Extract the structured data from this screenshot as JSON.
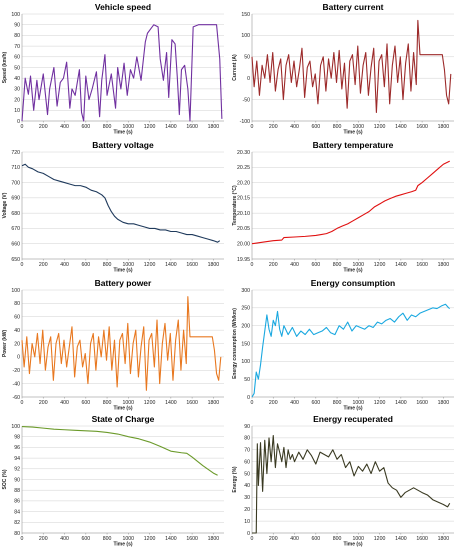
{
  "chart_data": [
    {
      "id": "speed",
      "type": "line",
      "title": "Vehicle speed",
      "xlabel": "Time (s)",
      "ylabel": "Speed (km/h)",
      "xlim": [
        0,
        1900
      ],
      "ylim": [
        0,
        100
      ],
      "xticks": [
        0,
        200,
        400,
        600,
        800,
        1000,
        1200,
        1400,
        1600,
        1800
      ],
      "yticks": [
        0,
        10,
        20,
        30,
        40,
        50,
        60,
        70,
        80,
        90,
        100
      ],
      "ytick_labels": [
        "0",
        "10",
        "20",
        "30",
        "40",
        "50",
        "60",
        "70",
        "80",
        "90",
        "100"
      ],
      "color": "#7030a0",
      "x": [
        0,
        30,
        60,
        80,
        110,
        140,
        160,
        200,
        240,
        260,
        300,
        330,
        360,
        390,
        420,
        450,
        470,
        500,
        540,
        560,
        580,
        600,
        630,
        660,
        700,
        730,
        750,
        780,
        800,
        840,
        880,
        900,
        930,
        960,
        990,
        1020,
        1050,
        1080,
        1120,
        1160,
        1180,
        1210,
        1240,
        1280,
        1300,
        1330,
        1360,
        1380,
        1410,
        1440,
        1460,
        1480,
        1500,
        1530,
        1560,
        1580,
        1610,
        1660,
        1700,
        1750,
        1800,
        1830,
        1860,
        1880
      ],
      "y": [
        0,
        40,
        25,
        42,
        10,
        38,
        20,
        44,
        6,
        30,
        50,
        14,
        36,
        40,
        55,
        12,
        30,
        24,
        48,
        8,
        0,
        42,
        20,
        30,
        46,
        4,
        38,
        62,
        24,
        44,
        12,
        50,
        30,
        54,
        24,
        48,
        40,
        60,
        38,
        74,
        82,
        86,
        90,
        88,
        58,
        38,
        64,
        22,
        76,
        72,
        42,
        6,
        48,
        52,
        30,
        0,
        88,
        90,
        90,
        90,
        90,
        90,
        58,
        2
      ]
    },
    {
      "id": "current",
      "type": "line",
      "title": "Battery current",
      "xlabel": "Time (s)",
      "ylabel": "Current (A)",
      "xlim": [
        0,
        1900
      ],
      "ylim": [
        -100,
        150
      ],
      "xticks": [
        0,
        200,
        400,
        600,
        800,
        1000,
        1200,
        1400,
        1600,
        1800
      ],
      "yticks": [
        -100,
        -50,
        0,
        50,
        100,
        150
      ],
      "ytick_labels": [
        "-100",
        "-50",
        "0",
        "50",
        "100",
        "150"
      ],
      "color": "#9c2a2a",
      "x": [
        0,
        20,
        45,
        70,
        95,
        120,
        145,
        170,
        195,
        220,
        245,
        270,
        295,
        320,
        345,
        370,
        395,
        420,
        445,
        470,
        495,
        520,
        545,
        570,
        595,
        620,
        645,
        670,
        695,
        720,
        745,
        770,
        795,
        820,
        845,
        870,
        895,
        920,
        945,
        970,
        995,
        1020,
        1045,
        1070,
        1095,
        1120,
        1145,
        1170,
        1195,
        1220,
        1245,
        1270,
        1295,
        1320,
        1345,
        1370,
        1395,
        1420,
        1445,
        1470,
        1495,
        1520,
        1545,
        1560,
        1580,
        1620,
        1680,
        1740,
        1790,
        1810,
        1830,
        1850,
        1870
      ],
      "y": [
        50,
        -20,
        40,
        -40,
        30,
        0,
        55,
        -10,
        60,
        -30,
        20,
        45,
        -50,
        30,
        55,
        -10,
        40,
        -20,
        20,
        70,
        -45,
        25,
        40,
        -20,
        10,
        -60,
        30,
        50,
        -30,
        45,
        0,
        60,
        -10,
        65,
        -25,
        35,
        -70,
        40,
        55,
        -15,
        75,
        -35,
        30,
        60,
        -40,
        25,
        70,
        -80,
        40,
        55,
        -20,
        80,
        -60,
        30,
        75,
        -10,
        50,
        -50,
        35,
        80,
        -30,
        60,
        -15,
        135,
        55,
        55,
        55,
        55,
        55,
        20,
        -40,
        -60,
        10
      ]
    },
    {
      "id": "voltage",
      "type": "line",
      "title": "Battery voltage",
      "xlabel": "Time (s)",
      "ylabel": "Voltage (V)",
      "xlim": [
        0,
        1900
      ],
      "ylim": [
        650,
        720
      ],
      "xticks": [
        0,
        200,
        400,
        600,
        800,
        1000,
        1200,
        1400,
        1600,
        1800
      ],
      "yticks": [
        650,
        660,
        670,
        680,
        690,
        700,
        710,
        720
      ],
      "ytick_labels": [
        "650",
        "660",
        "670",
        "680",
        "690",
        "700",
        "710",
        "720"
      ],
      "color": "#1f3a5c",
      "x": [
        0,
        30,
        60,
        100,
        150,
        200,
        250,
        300,
        350,
        400,
        450,
        500,
        550,
        600,
        650,
        700,
        750,
        780,
        810,
        840,
        870,
        900,
        950,
        1000,
        1050,
        1100,
        1150,
        1200,
        1250,
        1300,
        1350,
        1400,
        1450,
        1500,
        1550,
        1600,
        1650,
        1700,
        1750,
        1800,
        1840,
        1860
      ],
      "y": [
        711,
        712,
        710,
        709,
        707,
        706,
        704,
        702,
        701,
        700,
        699,
        698,
        698,
        697,
        695,
        694,
        692,
        690,
        685,
        681,
        678,
        676,
        674,
        673,
        673,
        672,
        671,
        670,
        670,
        669,
        669,
        668,
        668,
        667,
        666,
        666,
        665,
        664,
        663,
        662,
        661,
        662
      ]
    },
    {
      "id": "temperature",
      "type": "line",
      "title": "Battery temperature",
      "xlabel": "Time (s)",
      "ylabel": "Temperature (°C)",
      "xlim": [
        0,
        1900
      ],
      "ylim": [
        19.95,
        20.3
      ],
      "xticks": [
        0,
        200,
        400,
        600,
        800,
        1000,
        1200,
        1400,
        1600,
        1800
      ],
      "yticks": [
        19.95,
        20.0,
        20.05,
        20.1,
        20.15,
        20.2,
        20.25,
        20.3
      ],
      "ytick_labels": [
        "19.95",
        "20.00",
        "20.05",
        "20.10",
        "20.15",
        "20.20",
        "20.25",
        "20.30"
      ],
      "color": "#e01010",
      "x": [
        0,
        100,
        200,
        280,
        300,
        400,
        500,
        600,
        650,
        700,
        750,
        800,
        850,
        900,
        950,
        1000,
        1050,
        1100,
        1150,
        1200,
        1250,
        1300,
        1350,
        1400,
        1450,
        1500,
        1540,
        1560,
        1600,
        1650,
        1700,
        1750,
        1800,
        1860
      ],
      "y": [
        20.0,
        20.005,
        20.01,
        20.012,
        20.02,
        20.022,
        20.024,
        20.027,
        20.03,
        20.033,
        20.04,
        20.05,
        20.058,
        20.065,
        20.075,
        20.085,
        20.095,
        20.105,
        20.12,
        20.13,
        20.14,
        20.148,
        20.155,
        20.16,
        20.165,
        20.17,
        20.175,
        20.19,
        20.2,
        20.215,
        20.23,
        20.245,
        20.26,
        20.27
      ]
    },
    {
      "id": "power",
      "type": "line",
      "title": "Battery power",
      "xlabel": "Time (s)",
      "ylabel": "Power (kW)",
      "xlim": [
        0,
        1900
      ],
      "ylim": [
        -60,
        100
      ],
      "xticks": [
        0,
        200,
        400,
        600,
        800,
        1000,
        1200,
        1400,
        1600,
        1800
      ],
      "yticks": [
        -60,
        -40,
        -20,
        0,
        20,
        40,
        60,
        80,
        100
      ],
      "ytick_labels": [
        "-60",
        "-40",
        "-20",
        "0",
        "20",
        "40",
        "60",
        "80",
        "100"
      ],
      "color": "#e87820",
      "x": [
        0,
        20,
        45,
        70,
        95,
        120,
        145,
        170,
        195,
        220,
        245,
        270,
        295,
        320,
        345,
        370,
        395,
        420,
        445,
        470,
        495,
        520,
        545,
        570,
        595,
        620,
        645,
        670,
        695,
        720,
        745,
        770,
        795,
        820,
        845,
        870,
        895,
        920,
        945,
        970,
        995,
        1020,
        1045,
        1070,
        1095,
        1120,
        1145,
        1170,
        1195,
        1220,
        1245,
        1270,
        1295,
        1320,
        1345,
        1370,
        1395,
        1420,
        1445,
        1470,
        1495,
        1520,
        1545,
        1560,
        1580,
        1620,
        1680,
        1740,
        1790,
        1810,
        1830,
        1850,
        1870
      ],
      "y": [
        25,
        -15,
        30,
        -25,
        20,
        0,
        35,
        -10,
        40,
        -20,
        15,
        30,
        -35,
        20,
        35,
        -10,
        25,
        -15,
        15,
        45,
        -30,
        15,
        25,
        -15,
        5,
        -40,
        20,
        35,
        -20,
        30,
        0,
        40,
        -5,
        45,
        -20,
        25,
        -45,
        25,
        35,
        -10,
        50,
        -25,
        20,
        40,
        -30,
        15,
        45,
        -50,
        25,
        35,
        -15,
        55,
        -40,
        20,
        50,
        -5,
        35,
        -35,
        25,
        55,
        -20,
        40,
        -10,
        90,
        30,
        30,
        30,
        30,
        30,
        10,
        -25,
        -35,
        0
      ]
    },
    {
      "id": "consumption",
      "type": "line",
      "title": "Energy consumption",
      "xlabel": "Time (s)",
      "ylabel": "Energy consumption (Wh/km)",
      "xlim": [
        0,
        1900
      ],
      "ylim": [
        0,
        300
      ],
      "xticks": [
        0,
        200,
        400,
        600,
        800,
        1000,
        1200,
        1400,
        1600,
        1800
      ],
      "yticks": [
        0,
        50,
        100,
        150,
        200,
        250,
        300
      ],
      "ytick_labels": [
        "0",
        "50",
        "100",
        "150",
        "200",
        "250",
        "300"
      ],
      "color": "#1aa8e0",
      "x": [
        0,
        20,
        40,
        60,
        80,
        100,
        120,
        140,
        160,
        180,
        200,
        220,
        240,
        260,
        280,
        300,
        340,
        380,
        420,
        460,
        500,
        540,
        580,
        620,
        660,
        700,
        740,
        780,
        820,
        860,
        900,
        940,
        980,
        1020,
        1060,
        1100,
        1140,
        1180,
        1220,
        1260,
        1300,
        1340,
        1380,
        1420,
        1460,
        1500,
        1540,
        1580,
        1620,
        1660,
        1700,
        1740,
        1780,
        1820,
        1850,
        1860
      ],
      "y": [
        0,
        10,
        70,
        50,
        90,
        140,
        185,
        230,
        190,
        170,
        215,
        200,
        240,
        190,
        170,
        200,
        175,
        195,
        170,
        185,
        175,
        190,
        175,
        180,
        185,
        195,
        180,
        175,
        200,
        190,
        210,
        185,
        200,
        195,
        190,
        200,
        195,
        210,
        205,
        215,
        220,
        210,
        225,
        235,
        215,
        230,
        225,
        235,
        240,
        245,
        250,
        248,
        255,
        260,
        250,
        248
      ]
    },
    {
      "id": "soc",
      "type": "line",
      "title": "State of Charge",
      "xlabel": "Time (s)",
      "ylabel": "SOC (%)",
      "xlim": [
        0,
        1900
      ],
      "ylim": [
        80,
        100
      ],
      "xticks": [
        0,
        200,
        400,
        600,
        800,
        1000,
        1200,
        1400,
        1600,
        1800
      ],
      "yticks": [
        80,
        82,
        84,
        86,
        88,
        90,
        92,
        94,
        96,
        98,
        100
      ],
      "ytick_labels": [
        "80",
        "82",
        "84",
        "86",
        "88",
        "90",
        "92",
        "94",
        "96",
        "98",
        "100"
      ],
      "color": "#6b9a2a",
      "x": [
        0,
        100,
        200,
        300,
        400,
        500,
        600,
        700,
        800,
        900,
        1000,
        1100,
        1200,
        1300,
        1400,
        1500,
        1550,
        1600,
        1650,
        1700,
        1750,
        1800,
        1840
      ],
      "y": [
        99.9,
        99.8,
        99.6,
        99.4,
        99.3,
        99.2,
        99.1,
        99.0,
        98.8,
        98.5,
        98.0,
        97.6,
        97.0,
        96.2,
        95.3,
        95.0,
        94.9,
        94.2,
        93.4,
        92.6,
        91.9,
        91.2,
        90.8
      ]
    },
    {
      "id": "recuperated",
      "type": "line",
      "title": "Energy recuperated",
      "xlabel": "Time (s)",
      "ylabel": "Energy (%)",
      "xlim": [
        0,
        1900
      ],
      "ylim": [
        0,
        90
      ],
      "xticks": [
        0,
        200,
        400,
        600,
        800,
        1000,
        1200,
        1400,
        1600,
        1800
      ],
      "yticks": [
        0,
        10,
        20,
        30,
        40,
        50,
        60,
        70,
        80,
        90
      ],
      "ytick_labels": [
        "0",
        "10",
        "20",
        "30",
        "40",
        "50",
        "60",
        "70",
        "80",
        "90"
      ],
      "color": "#3a3a22",
      "x": [
        0,
        20,
        40,
        50,
        60,
        80,
        100,
        120,
        140,
        160,
        180,
        200,
        220,
        240,
        260,
        280,
        300,
        320,
        340,
        360,
        380,
        400,
        440,
        480,
        520,
        560,
        600,
        640,
        680,
        720,
        760,
        800,
        840,
        880,
        920,
        960,
        1000,
        1040,
        1080,
        1120,
        1160,
        1200,
        1240,
        1280,
        1320,
        1360,
        1400,
        1440,
        1480,
        1520,
        1560,
        1600,
        1650,
        1700,
        1750,
        1800,
        1840,
        1860
      ],
      "y": [
        0,
        0,
        0,
        75,
        40,
        76,
        35,
        78,
        50,
        80,
        60,
        82,
        55,
        75,
        68,
        60,
        72,
        55,
        70,
        62,
        66,
        60,
        68,
        62,
        70,
        65,
        58,
        68,
        66,
        64,
        70,
        62,
        66,
        55,
        60,
        48,
        56,
        52,
        58,
        50,
        60,
        52,
        55,
        42,
        38,
        36,
        30,
        34,
        36,
        38,
        36,
        34,
        32,
        28,
        26,
        24,
        22,
        25
      ]
    }
  ]
}
